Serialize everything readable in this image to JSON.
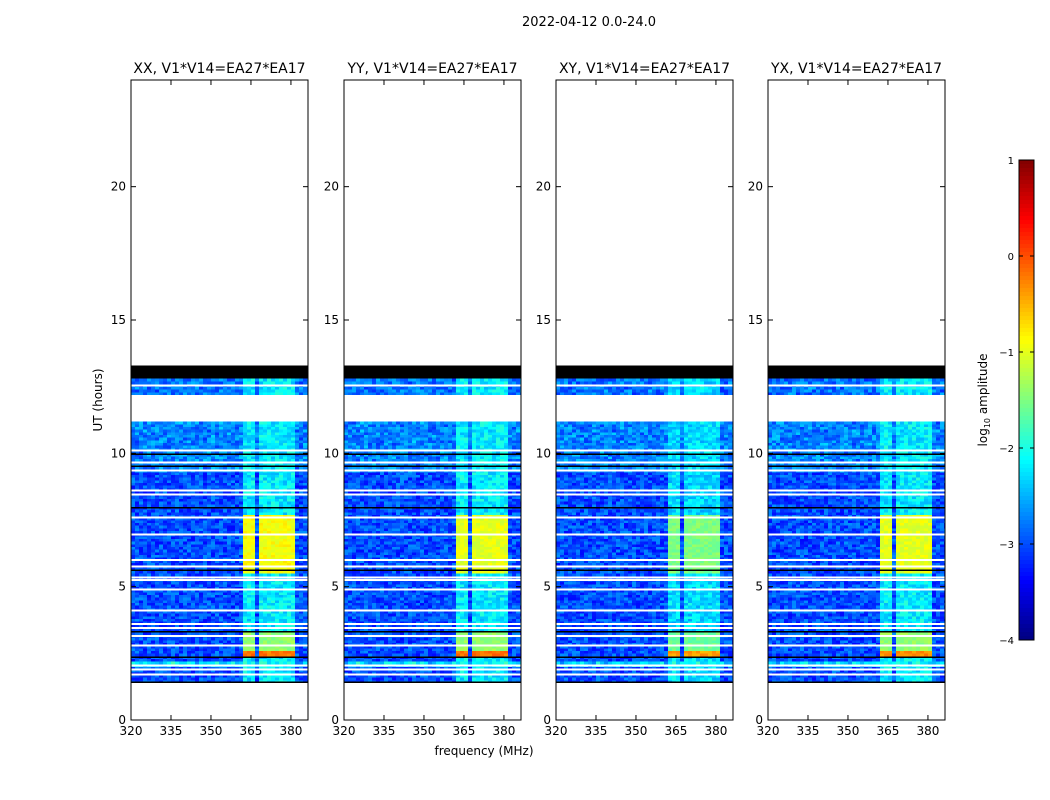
{
  "chart_data": {
    "type": "heatmap",
    "suptitle": "2022-04-12 0.0-24.0",
    "xlabel": "frequency (MHz)",
    "ylabel": "UT (hours)",
    "xlim": [
      320,
      386.4
    ],
    "ylim": [
      0,
      24
    ],
    "xticks": [
      320,
      335,
      350,
      365,
      380
    ],
    "yticks": [
      0,
      5,
      10,
      15,
      20
    ],
    "colorbar": {
      "label": "log10 amplitude",
      "label_main": "log",
      "label_sub": "10",
      "label_rest": " amplitude",
      "range": [
        -4,
        1
      ],
      "ticks": [
        1,
        0,
        -1,
        -2,
        -3,
        -4
      ],
      "colormap": "jet"
    },
    "background_level": -3.0,
    "rfi_channels_mhz": [
      [
        362.5,
        367
      ],
      [
        367.5,
        372
      ],
      [
        372.5,
        377
      ],
      [
        377.5,
        381
      ]
    ],
    "time_segments": [
      {
        "start": 12.8,
        "end": 13.3,
        "type": "black"
      },
      {
        "start": 12.2,
        "end": 12.8,
        "type": "data"
      },
      {
        "start": 11.2,
        "end": 12.2,
        "type": "blank"
      },
      {
        "start": 1.4,
        "end": 11.2,
        "type": "data"
      },
      {
        "start": 0,
        "end": 1.4,
        "type": "blank"
      }
    ],
    "flag_lines_hours": [
      12.55,
      10.1,
      9.65,
      9.35,
      8.6,
      8.45,
      7.6,
      6.95,
      6.0,
      5.75,
      5.35,
      5.25,
      4.9,
      4.1,
      3.6,
      3.45,
      3.15,
      2.8,
      2.05,
      1.9,
      1.7,
      12.05
    ],
    "black_lines_hours": [
      9.95,
      9.5,
      7.95,
      5.6,
      3.3,
      2.35,
      1.4
    ],
    "raised_noise_hours": [
      [
        9.3,
        11.2,
        0.3
      ],
      [
        12.2,
        12.8,
        0.2
      ],
      [
        2.0,
        2.2,
        0.8
      ]
    ],
    "panels": [
      {
        "title": "XX, V1*V14=EA27*EA17",
        "rfi_events": [
          {
            "start": 5.5,
            "end": 7.7,
            "level": -0.9
          },
          {
            "start": 2.65,
            "end": 3.3,
            "level": -1.4
          },
          {
            "start": 2.4,
            "end": 2.62,
            "level": -0.2
          }
        ],
        "rfi_faint": -2.2
      },
      {
        "title": "YY, V1*V14=EA27*EA17",
        "rfi_events": [
          {
            "start": 5.5,
            "end": 7.7,
            "level": -1.0
          },
          {
            "start": 2.65,
            "end": 3.3,
            "level": -1.4
          },
          {
            "start": 2.4,
            "end": 2.62,
            "level": -0.2
          }
        ],
        "rfi_faint": -2.2
      },
      {
        "title": "XY, V1*V14=EA27*EA17",
        "rfi_events": [
          {
            "start": 5.5,
            "end": 7.7,
            "level": -1.5
          },
          {
            "start": 2.65,
            "end": 3.3,
            "level": -1.6
          },
          {
            "start": 2.4,
            "end": 2.62,
            "level": -0.4
          }
        ],
        "rfi_faint": -2.3
      },
      {
        "title": "YX, V1*V14=EA27*EA17",
        "rfi_events": [
          {
            "start": 5.5,
            "end": 7.7,
            "level": -1.0
          },
          {
            "start": 2.65,
            "end": 3.3,
            "level": -1.4
          },
          {
            "start": 2.4,
            "end": 2.62,
            "level": -0.3
          }
        ],
        "rfi_faint": -2.2
      }
    ]
  }
}
